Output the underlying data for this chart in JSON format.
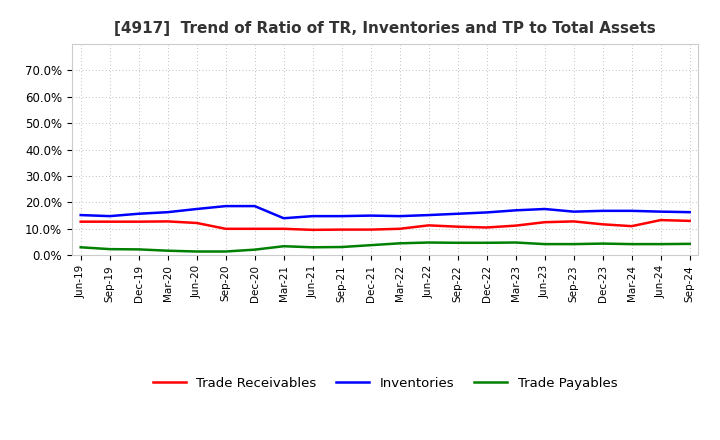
{
  "title": "[4917]  Trend of Ratio of TR, Inventories and TP to Total Assets",
  "labels": [
    "Jun-19",
    "Sep-19",
    "Dec-19",
    "Mar-20",
    "Jun-20",
    "Sep-20",
    "Dec-20",
    "Mar-21",
    "Jun-21",
    "Sep-21",
    "Dec-21",
    "Mar-22",
    "Jun-22",
    "Sep-22",
    "Dec-22",
    "Mar-23",
    "Jun-23",
    "Sep-23",
    "Dec-23",
    "Mar-24",
    "Jun-24",
    "Sep-24"
  ],
  "trade_receivables": [
    0.127,
    0.127,
    0.127,
    0.128,
    0.122,
    0.1,
    0.1,
    0.1,
    0.096,
    0.097,
    0.097,
    0.1,
    0.113,
    0.108,
    0.105,
    0.112,
    0.125,
    0.128,
    0.117,
    0.11,
    0.133,
    0.13
  ],
  "inventories": [
    0.152,
    0.148,
    0.157,
    0.163,
    0.175,
    0.186,
    0.186,
    0.14,
    0.148,
    0.148,
    0.15,
    0.148,
    0.152,
    0.157,
    0.162,
    0.17,
    0.175,
    0.165,
    0.168,
    0.168,
    0.165,
    0.163
  ],
  "trade_payables": [
    0.03,
    0.023,
    0.022,
    0.017,
    0.014,
    0.014,
    0.021,
    0.034,
    0.03,
    0.031,
    0.038,
    0.045,
    0.048,
    0.047,
    0.047,
    0.048,
    0.042,
    0.042,
    0.044,
    0.042,
    0.042,
    0.043
  ],
  "tr_color": "#ff0000",
  "inv_color": "#0000ff",
  "tp_color": "#008000",
  "ylim": [
    0.0,
    0.8
  ],
  "yticks": [
    0.0,
    0.1,
    0.2,
    0.3,
    0.4,
    0.5,
    0.6,
    0.7
  ],
  "ytick_labels": [
    "0.0%",
    "10.0%",
    "20.0%",
    "30.0%",
    "40.0%",
    "50.0%",
    "60.0%",
    "70.0%"
  ],
  "legend_labels": [
    "Trade Receivables",
    "Inventories",
    "Trade Payables"
  ],
  "background_color": "#ffffff",
  "plot_bg_color": "#ffffff",
  "line_width": 1.8
}
